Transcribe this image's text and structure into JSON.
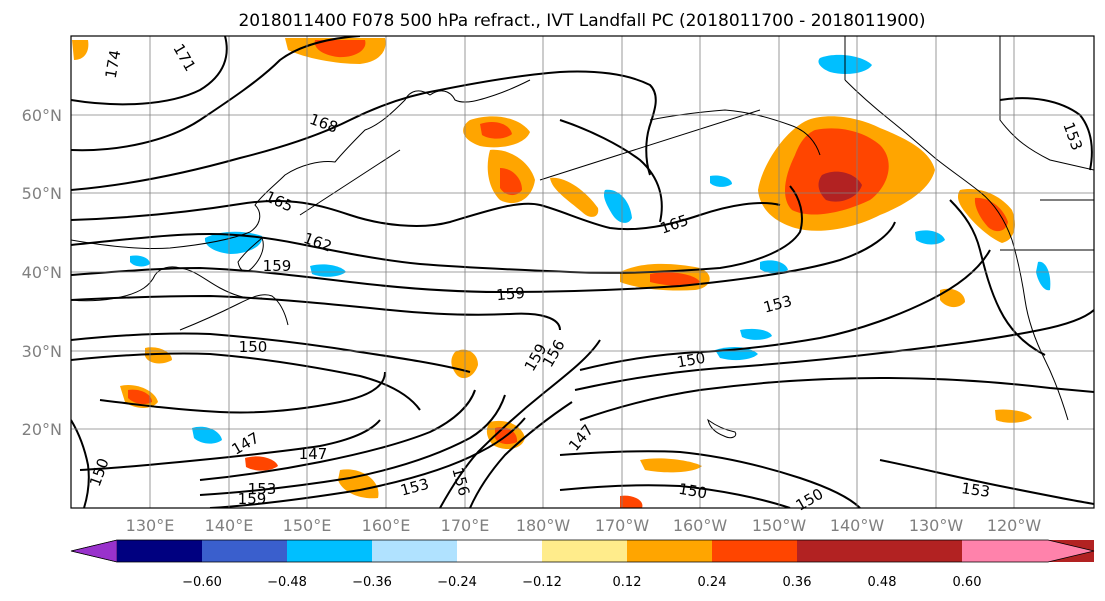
{
  "title": "2018011400 F078 500 hPa refract., IVT Landfall PC (2018011700 - 2018011900)",
  "map": {
    "lat_labels": [
      "60°N",
      "50°N",
      "40°N",
      "30°N",
      "20°N"
    ],
    "lon_labels": [
      "130°E",
      "140°E",
      "150°E",
      "160°E",
      "170°E",
      "180°W",
      "170°W",
      "160°W",
      "150°W",
      "140°W",
      "130°W",
      "120°W"
    ],
    "contour_labels": [
      "174",
      "171",
      "168",
      "165",
      "162",
      "159",
      "159",
      "159",
      "156",
      "153",
      "150",
      "150",
      "147",
      "147",
      "153",
      "159",
      "156",
      "150",
      "153",
      "165",
      "153",
      "150",
      "147",
      "153",
      "150"
    ]
  },
  "colorbar": {
    "ticks": [
      "−0.60",
      "−0.48",
      "−0.36",
      "−0.24",
      "−0.12",
      "0.12",
      "0.24",
      "0.36",
      "0.48",
      "0.60"
    ],
    "colors": [
      "#9932cc",
      "#000080",
      "#3a5fcd",
      "#00bfff",
      "#b0e2ff",
      "#ffffff",
      "#ffec8b",
      "#ffa500",
      "#ff4500",
      "#b22222",
      "#ff82ab"
    ]
  }
}
